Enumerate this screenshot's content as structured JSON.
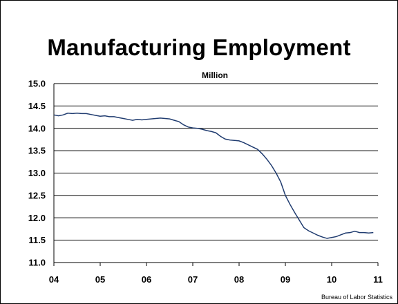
{
  "title": "Manufacturing Employment",
  "source": "Bureau of Labor Statistics",
  "colors": {
    "line": "#1f3b6f",
    "grid": "#000000",
    "background": "#ffffff"
  },
  "chart_data": {
    "type": "line",
    "title": "Manufacturing Employment",
    "unit_label": "Million",
    "xlabel": "",
    "ylabel": "",
    "xlim": [
      4,
      11
    ],
    "ylim": [
      11.0,
      15.0
    ],
    "grid": true,
    "x_ticks": [
      "04",
      "05",
      "06",
      "07",
      "08",
      "09",
      "10",
      "11"
    ],
    "y_ticks": [
      "15.0",
      "14.5",
      "14.0",
      "13.5",
      "13.0",
      "12.5",
      "12.0",
      "11.5",
      "11.0"
    ],
    "series": [
      {
        "x": [
          4.0,
          4.1,
          4.2,
          4.3,
          4.4,
          4.5,
          4.6,
          4.7,
          4.8,
          4.9,
          5.0,
          5.1,
          5.2,
          5.3,
          5.4,
          5.5,
          5.6,
          5.7,
          5.8,
          5.9,
          6.0,
          6.1,
          6.2,
          6.3,
          6.4,
          6.5,
          6.6,
          6.7,
          6.8,
          6.9,
          7.0,
          7.1,
          7.2,
          7.3,
          7.4,
          7.5,
          7.6,
          7.7,
          7.8,
          7.9,
          8.0,
          8.1,
          8.2,
          8.3,
          8.4,
          8.5,
          8.6,
          8.7,
          8.8,
          8.9,
          9.0,
          9.1,
          9.2,
          9.3,
          9.4,
          9.5,
          9.6,
          9.7,
          9.8,
          9.9,
          10.0,
          10.1,
          10.2,
          10.3,
          10.4,
          10.5,
          10.6,
          10.7,
          10.8,
          10.9
        ],
        "values": [
          14.3,
          14.28,
          14.3,
          14.34,
          14.33,
          14.34,
          14.33,
          14.33,
          14.31,
          14.29,
          14.27,
          14.28,
          14.26,
          14.26,
          14.24,
          14.22,
          14.2,
          14.18,
          14.2,
          14.19,
          14.2,
          14.21,
          14.22,
          14.23,
          14.22,
          14.21,
          14.18,
          14.15,
          14.08,
          14.03,
          14.01,
          14.0,
          13.98,
          13.95,
          13.93,
          13.9,
          13.82,
          13.76,
          13.74,
          13.73,
          13.72,
          13.68,
          13.63,
          13.58,
          13.53,
          13.43,
          13.31,
          13.17,
          13.0,
          12.8,
          12.5,
          12.3,
          12.12,
          11.95,
          11.78,
          11.71,
          11.66,
          11.61,
          11.57,
          11.54,
          11.56,
          11.58,
          11.62,
          11.66,
          11.67,
          11.7,
          11.67,
          11.67,
          11.66,
          11.67
        ]
      }
    ]
  }
}
